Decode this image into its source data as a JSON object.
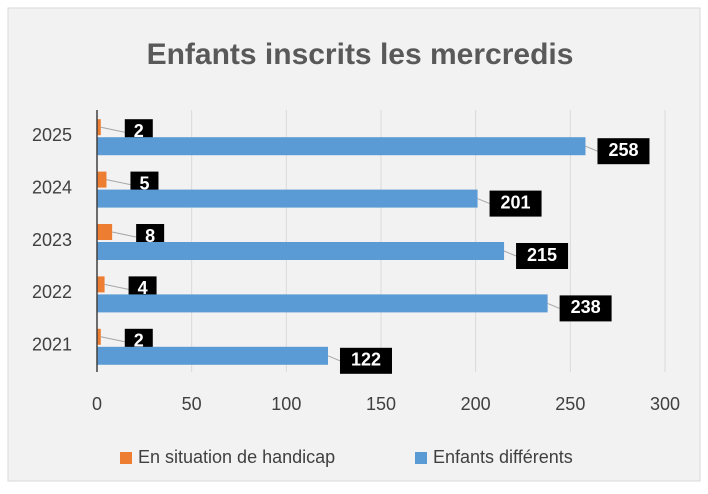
{
  "chart_data": {
    "type": "bar",
    "orientation": "horizontal",
    "title": "Enfants inscrits les mercredis",
    "categories": [
      "2021",
      "2022",
      "2023",
      "2024",
      "2025"
    ],
    "series": [
      {
        "name": "En situation de handicap",
        "color": "#ed7d31",
        "values": [
          2,
          4,
          8,
          5,
          2
        ]
      },
      {
        "name": "Enfants différents",
        "color": "#5b9bd5",
        "values": [
          122,
          238,
          215,
          201,
          258
        ]
      }
    ],
    "xlim": [
      0,
      300
    ],
    "xticks": [
      0,
      50,
      100,
      150,
      200,
      250,
      300
    ],
    "grid": true,
    "legend": "bottom"
  }
}
